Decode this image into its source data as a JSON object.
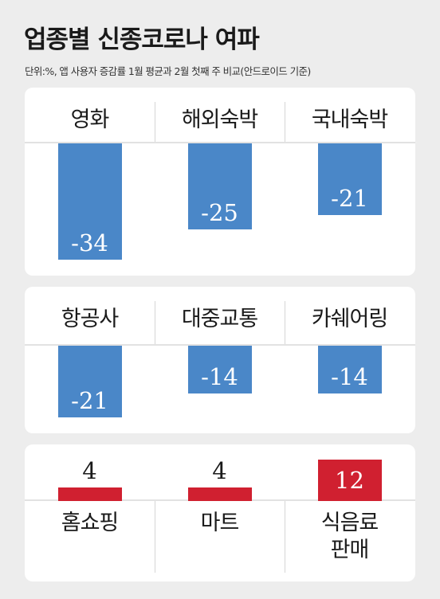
{
  "title": "업종별 신종코로나 여파",
  "subtitle": "단위:%, 앱 사용자 증감률  1월 평균과 2월 첫째 주 비교(안드로이드 기준)",
  "colors": {
    "negative": "#4a87c8",
    "positive": "#d02030"
  },
  "chart_data": {
    "type": "bar",
    "title": "업종별 신종코로나 여파",
    "unit": "%",
    "categories": [
      "영화",
      "해외숙박",
      "국내숙박",
      "항공사",
      "대중교통",
      "카쉐어링",
      "홈쇼핑",
      "마트",
      "식음료\n판매"
    ],
    "values": [
      -34,
      -25,
      -21,
      -21,
      -14,
      -14,
      4,
      4,
      12
    ],
    "groups": [
      {
        "type": "negative",
        "categories": [
          "영화",
          "해외숙박",
          "국내숙박"
        ],
        "values": [
          -34,
          -25,
          -21
        ]
      },
      {
        "type": "negative",
        "categories": [
          "항공사",
          "대중교통",
          "카쉐어링"
        ],
        "values": [
          -21,
          -14,
          -14
        ]
      },
      {
        "type": "positive",
        "categories": [
          "홈쇼핑",
          "마트",
          "식음료\n판매"
        ],
        "values": [
          4,
          4,
          12
        ]
      }
    ],
    "value_labels": [
      "-34",
      "-25",
      "-21",
      "-21",
      "-14",
      "-14",
      "4",
      "4",
      "12"
    ],
    "grid": false,
    "legend": "none"
  }
}
